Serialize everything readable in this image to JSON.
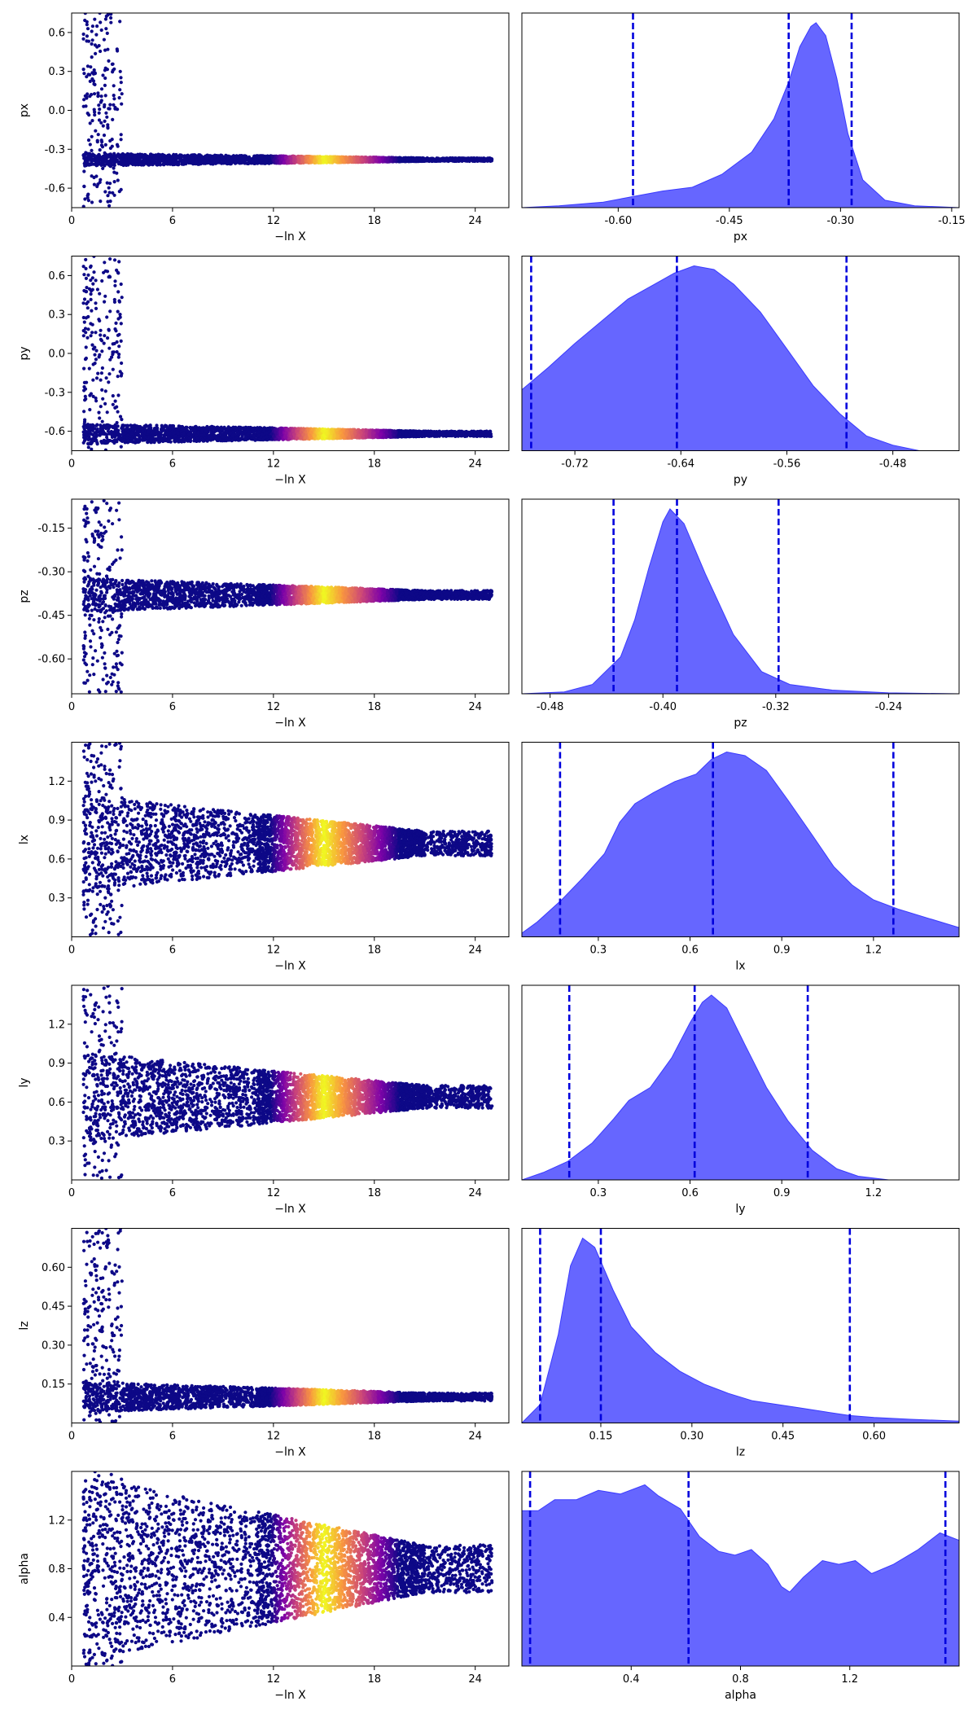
{
  "chart_data": [
    {
      "row": 1,
      "parameter": "px",
      "trace": {
        "type": "scatter",
        "xlabel": "−ln X",
        "ylabel": "px",
        "xlim": [
          0,
          26
        ],
        "ylim": [
          -0.75,
          0.75
        ],
        "xticks": [
          "0",
          "6",
          "12",
          "18",
          "24"
        ],
        "yticks": [
          "-0.6",
          "-0.3",
          "0.0",
          "0.3",
          "0.6"
        ],
        "converge": {
          "center": -0.38,
          "halfwidth": 0.05,
          "x_start": 0.7,
          "x_end": 26
        },
        "highlight_x": [
          12,
          18
        ]
      },
      "posterior": {
        "type": "area",
        "xlabel": "px",
        "xlim": [
          -0.73,
          -0.14
        ],
        "xticks": [
          "-0.60",
          "-0.45",
          "-0.30",
          "-0.15"
        ],
        "density": [
          [
            -0.73,
            0.0
          ],
          [
            -0.68,
            0.01
          ],
          [
            -0.62,
            0.03
          ],
          [
            -0.58,
            0.06
          ],
          [
            -0.54,
            0.09
          ],
          [
            -0.5,
            0.11
          ],
          [
            -0.46,
            0.18
          ],
          [
            -0.42,
            0.3
          ],
          [
            -0.39,
            0.48
          ],
          [
            -0.37,
            0.68
          ],
          [
            -0.355,
            0.87
          ],
          [
            -0.34,
            0.98
          ],
          [
            -0.333,
            1.0
          ],
          [
            -0.32,
            0.93
          ],
          [
            -0.305,
            0.7
          ],
          [
            -0.29,
            0.4
          ],
          [
            -0.27,
            0.15
          ],
          [
            -0.24,
            0.04
          ],
          [
            -0.2,
            0.01
          ],
          [
            -0.14,
            0.0
          ]
        ],
        "quantiles": [
          -0.58,
          -0.37,
          -0.285
        ]
      }
    },
    {
      "row": 2,
      "parameter": "py",
      "trace": {
        "type": "scatter",
        "xlabel": "−ln X",
        "ylabel": "py",
        "xlim": [
          0,
          26
        ],
        "ylim": [
          -0.75,
          0.75
        ],
        "xticks": [
          "0",
          "6",
          "12",
          "18",
          "24"
        ],
        "yticks": [
          "-0.6",
          "-0.3",
          "0.0",
          "0.3",
          "0.6"
        ],
        "converge": {
          "center": -0.62,
          "halfwidth": 0.08,
          "x_start": 0.7,
          "x_end": 26
        },
        "highlight_x": [
          12,
          18
        ]
      },
      "posterior": {
        "type": "area",
        "xlabel": "py",
        "xlim": [
          -0.76,
          -0.43
        ],
        "xticks": [
          "-0.72",
          "-0.64",
          "-0.56",
          "-0.48"
        ],
        "density": [
          [
            -0.76,
            0.33
          ],
          [
            -0.74,
            0.45
          ],
          [
            -0.72,
            0.58
          ],
          [
            -0.7,
            0.7
          ],
          [
            -0.68,
            0.82
          ],
          [
            -0.66,
            0.9
          ],
          [
            -0.645,
            0.96
          ],
          [
            -0.63,
            1.0
          ],
          [
            -0.615,
            0.98
          ],
          [
            -0.6,
            0.9
          ],
          [
            -0.58,
            0.75
          ],
          [
            -0.56,
            0.55
          ],
          [
            -0.54,
            0.35
          ],
          [
            -0.52,
            0.2
          ],
          [
            -0.5,
            0.08
          ],
          [
            -0.48,
            0.03
          ],
          [
            -0.46,
            0.0
          ],
          [
            -0.43,
            0.0
          ]
        ],
        "quantiles": [
          -0.753,
          -0.643,
          -0.515
        ]
      }
    },
    {
      "row": 3,
      "parameter": "pz",
      "trace": {
        "type": "scatter",
        "xlabel": "−ln X",
        "ylabel": "pz",
        "xlim": [
          0,
          26
        ],
        "ylim": [
          -0.72,
          -0.05
        ],
        "xticks": [
          "0",
          "6",
          "12",
          "18",
          "24"
        ],
        "yticks": [
          "-0.60",
          "-0.45",
          "-0.30",
          "-0.15"
        ],
        "converge": {
          "center": -0.38,
          "halfwidth": 0.06,
          "x_start": 0.7,
          "x_end": 26
        },
        "highlight_x": [
          12,
          18
        ]
      },
      "posterior": {
        "type": "area",
        "xlabel": "pz",
        "xlim": [
          -0.5,
          -0.19
        ],
        "xticks": [
          "-0.48",
          "-0.40",
          "-0.32",
          "-0.24"
        ],
        "density": [
          [
            -0.5,
            0.0
          ],
          [
            -0.47,
            0.01
          ],
          [
            -0.45,
            0.05
          ],
          [
            -0.43,
            0.2
          ],
          [
            -0.42,
            0.4
          ],
          [
            -0.41,
            0.68
          ],
          [
            -0.4,
            0.93
          ],
          [
            -0.395,
            1.0
          ],
          [
            -0.385,
            0.92
          ],
          [
            -0.37,
            0.65
          ],
          [
            -0.35,
            0.32
          ],
          [
            -0.33,
            0.12
          ],
          [
            -0.31,
            0.05
          ],
          [
            -0.28,
            0.02
          ],
          [
            -0.24,
            0.005
          ],
          [
            -0.19,
            0.0
          ]
        ],
        "quantiles": [
          -0.435,
          -0.39,
          -0.318
        ]
      }
    },
    {
      "row": 4,
      "parameter": "lx",
      "trace": {
        "type": "scatter",
        "xlabel": "−ln X",
        "ylabel": "lx",
        "xlim": [
          0,
          26
        ],
        "ylim": [
          0,
          1.5
        ],
        "xticks": [
          "0",
          "6",
          "12",
          "18",
          "24"
        ],
        "yticks": [
          "0.3",
          "0.6",
          "0.9",
          "1.2"
        ],
        "converge": {
          "center": 0.72,
          "halfwidth": 0.38,
          "x_start": 0.7,
          "x_end": 26
        },
        "highlight_x": [
          12,
          18
        ]
      },
      "posterior": {
        "type": "area",
        "xlabel": "lx",
        "xlim": [
          0.05,
          1.48
        ],
        "xticks": [
          "0.3",
          "0.6",
          "0.9",
          "1.2"
        ],
        "density": [
          [
            0.05,
            0.02
          ],
          [
            0.1,
            0.08
          ],
          [
            0.18,
            0.2
          ],
          [
            0.25,
            0.32
          ],
          [
            0.32,
            0.45
          ],
          [
            0.37,
            0.62
          ],
          [
            0.42,
            0.72
          ],
          [
            0.48,
            0.78
          ],
          [
            0.55,
            0.84
          ],
          [
            0.62,
            0.88
          ],
          [
            0.67,
            0.96
          ],
          [
            0.72,
            1.0
          ],
          [
            0.78,
            0.98
          ],
          [
            0.85,
            0.9
          ],
          [
            0.92,
            0.74
          ],
          [
            1.0,
            0.55
          ],
          [
            1.07,
            0.38
          ],
          [
            1.13,
            0.28
          ],
          [
            1.2,
            0.2
          ],
          [
            1.28,
            0.15
          ],
          [
            1.38,
            0.1
          ],
          [
            1.48,
            0.05
          ]
        ],
        "quantiles": [
          0.175,
          0.675,
          1.265
        ]
      }
    },
    {
      "row": 5,
      "parameter": "ly",
      "trace": {
        "type": "scatter",
        "xlabel": "−ln X",
        "ylabel": "ly",
        "xlim": [
          0,
          26
        ],
        "ylim": [
          0,
          1.5
        ],
        "xticks": [
          "0",
          "6",
          "12",
          "18",
          "24"
        ],
        "yticks": [
          "0.3",
          "0.6",
          "0.9",
          "1.2"
        ],
        "converge": {
          "center": 0.64,
          "halfwidth": 0.35,
          "x_start": 0.7,
          "x_end": 26
        },
        "highlight_x": [
          12,
          18
        ]
      },
      "posterior": {
        "type": "area",
        "xlabel": "ly",
        "xlim": [
          0.05,
          1.48
        ],
        "xticks": [
          "0.3",
          "0.6",
          "0.9",
          "1.2"
        ],
        "density": [
          [
            0.05,
            0.0
          ],
          [
            0.12,
            0.04
          ],
          [
            0.2,
            0.1
          ],
          [
            0.28,
            0.2
          ],
          [
            0.35,
            0.33
          ],
          [
            0.4,
            0.43
          ],
          [
            0.47,
            0.5
          ],
          [
            0.54,
            0.66
          ],
          [
            0.6,
            0.85
          ],
          [
            0.64,
            0.96
          ],
          [
            0.67,
            1.0
          ],
          [
            0.72,
            0.93
          ],
          [
            0.78,
            0.73
          ],
          [
            0.85,
            0.5
          ],
          [
            0.92,
            0.32
          ],
          [
            1.0,
            0.16
          ],
          [
            1.08,
            0.06
          ],
          [
            1.15,
            0.02
          ],
          [
            1.25,
            0.0
          ],
          [
            1.48,
            0.0
          ]
        ],
        "quantiles": [
          0.205,
          0.615,
          0.985
        ]
      }
    },
    {
      "row": 6,
      "parameter": "lz",
      "trace": {
        "type": "scatter",
        "xlabel": "−ln X",
        "ylabel": "lz",
        "xlim": [
          0,
          26
        ],
        "ylim": [
          0,
          0.75
        ],
        "xticks": [
          "0",
          "6",
          "12",
          "18",
          "24"
        ],
        "yticks": [
          "0.15",
          "0.30",
          "0.45",
          "0.60"
        ],
        "converge": {
          "center": 0.1,
          "halfwidth": 0.06,
          "x_start": 0.7,
          "x_end": 26
        },
        "highlight_x": [
          12,
          18
        ]
      },
      "posterior": {
        "type": "area",
        "xlabel": "lz",
        "xlim": [
          0.02,
          0.74
        ],
        "xticks": [
          "0.15",
          "0.30",
          "0.45",
          "0.60"
        ],
        "density": [
          [
            0.02,
            0.0
          ],
          [
            0.05,
            0.1
          ],
          [
            0.08,
            0.48
          ],
          [
            0.1,
            0.85
          ],
          [
            0.12,
            1.0
          ],
          [
            0.14,
            0.95
          ],
          [
            0.17,
            0.72
          ],
          [
            0.2,
            0.52
          ],
          [
            0.24,
            0.38
          ],
          [
            0.28,
            0.28
          ],
          [
            0.32,
            0.21
          ],
          [
            0.36,
            0.16
          ],
          [
            0.4,
            0.12
          ],
          [
            0.44,
            0.1
          ],
          [
            0.48,
            0.08
          ],
          [
            0.52,
            0.06
          ],
          [
            0.56,
            0.04
          ],
          [
            0.6,
            0.03
          ],
          [
            0.66,
            0.02
          ],
          [
            0.74,
            0.01
          ]
        ],
        "quantiles": [
          0.05,
          0.15,
          0.56
        ]
      }
    },
    {
      "row": 7,
      "parameter": "alpha",
      "trace": {
        "type": "scatter",
        "xlabel": "−ln X",
        "ylabel": "alpha",
        "xlim": [
          0,
          26
        ],
        "ylim": [
          0,
          1.6
        ],
        "xticks": [
          "0",
          "6",
          "12",
          "18",
          "24"
        ],
        "yticks": [
          "0.4",
          "0.8",
          "1.2"
        ],
        "converge": {
          "center": 0.8,
          "halfwidth": 0.78,
          "x_start": 0.7,
          "x_end": 26
        },
        "highlight_x": [
          12,
          18
        ]
      },
      "posterior": {
        "type": "area",
        "xlabel": "alpha",
        "xlim": [
          0.0,
          1.6
        ],
        "xticks": [
          "0.4",
          "0.8",
          "1.2"
        ],
        "density": [
          [
            0.0,
            0.84
          ],
          [
            0.06,
            0.84
          ],
          [
            0.12,
            0.9
          ],
          [
            0.2,
            0.9
          ],
          [
            0.28,
            0.95
          ],
          [
            0.36,
            0.93
          ],
          [
            0.45,
            0.98
          ],
          [
            0.5,
            0.92
          ],
          [
            0.58,
            0.85
          ],
          [
            0.65,
            0.7
          ],
          [
            0.72,
            0.62
          ],
          [
            0.78,
            0.6
          ],
          [
            0.84,
            0.63
          ],
          [
            0.9,
            0.55
          ],
          [
            0.95,
            0.43
          ],
          [
            0.98,
            0.4
          ],
          [
            1.03,
            0.48
          ],
          [
            1.1,
            0.57
          ],
          [
            1.16,
            0.55
          ],
          [
            1.22,
            0.57
          ],
          [
            1.28,
            0.5
          ],
          [
            1.36,
            0.55
          ],
          [
            1.45,
            0.63
          ],
          [
            1.53,
            0.72
          ],
          [
            1.6,
            0.68
          ]
        ],
        "quantiles": [
          0.03,
          0.61,
          1.55
        ]
      }
    }
  ],
  "style": {
    "fill_color": "#6666ff",
    "line_color": "#3a3aff",
    "quantile_color": "#0000dd",
    "scatter_base_color": "#0d0887",
    "colormap": "plasma"
  }
}
